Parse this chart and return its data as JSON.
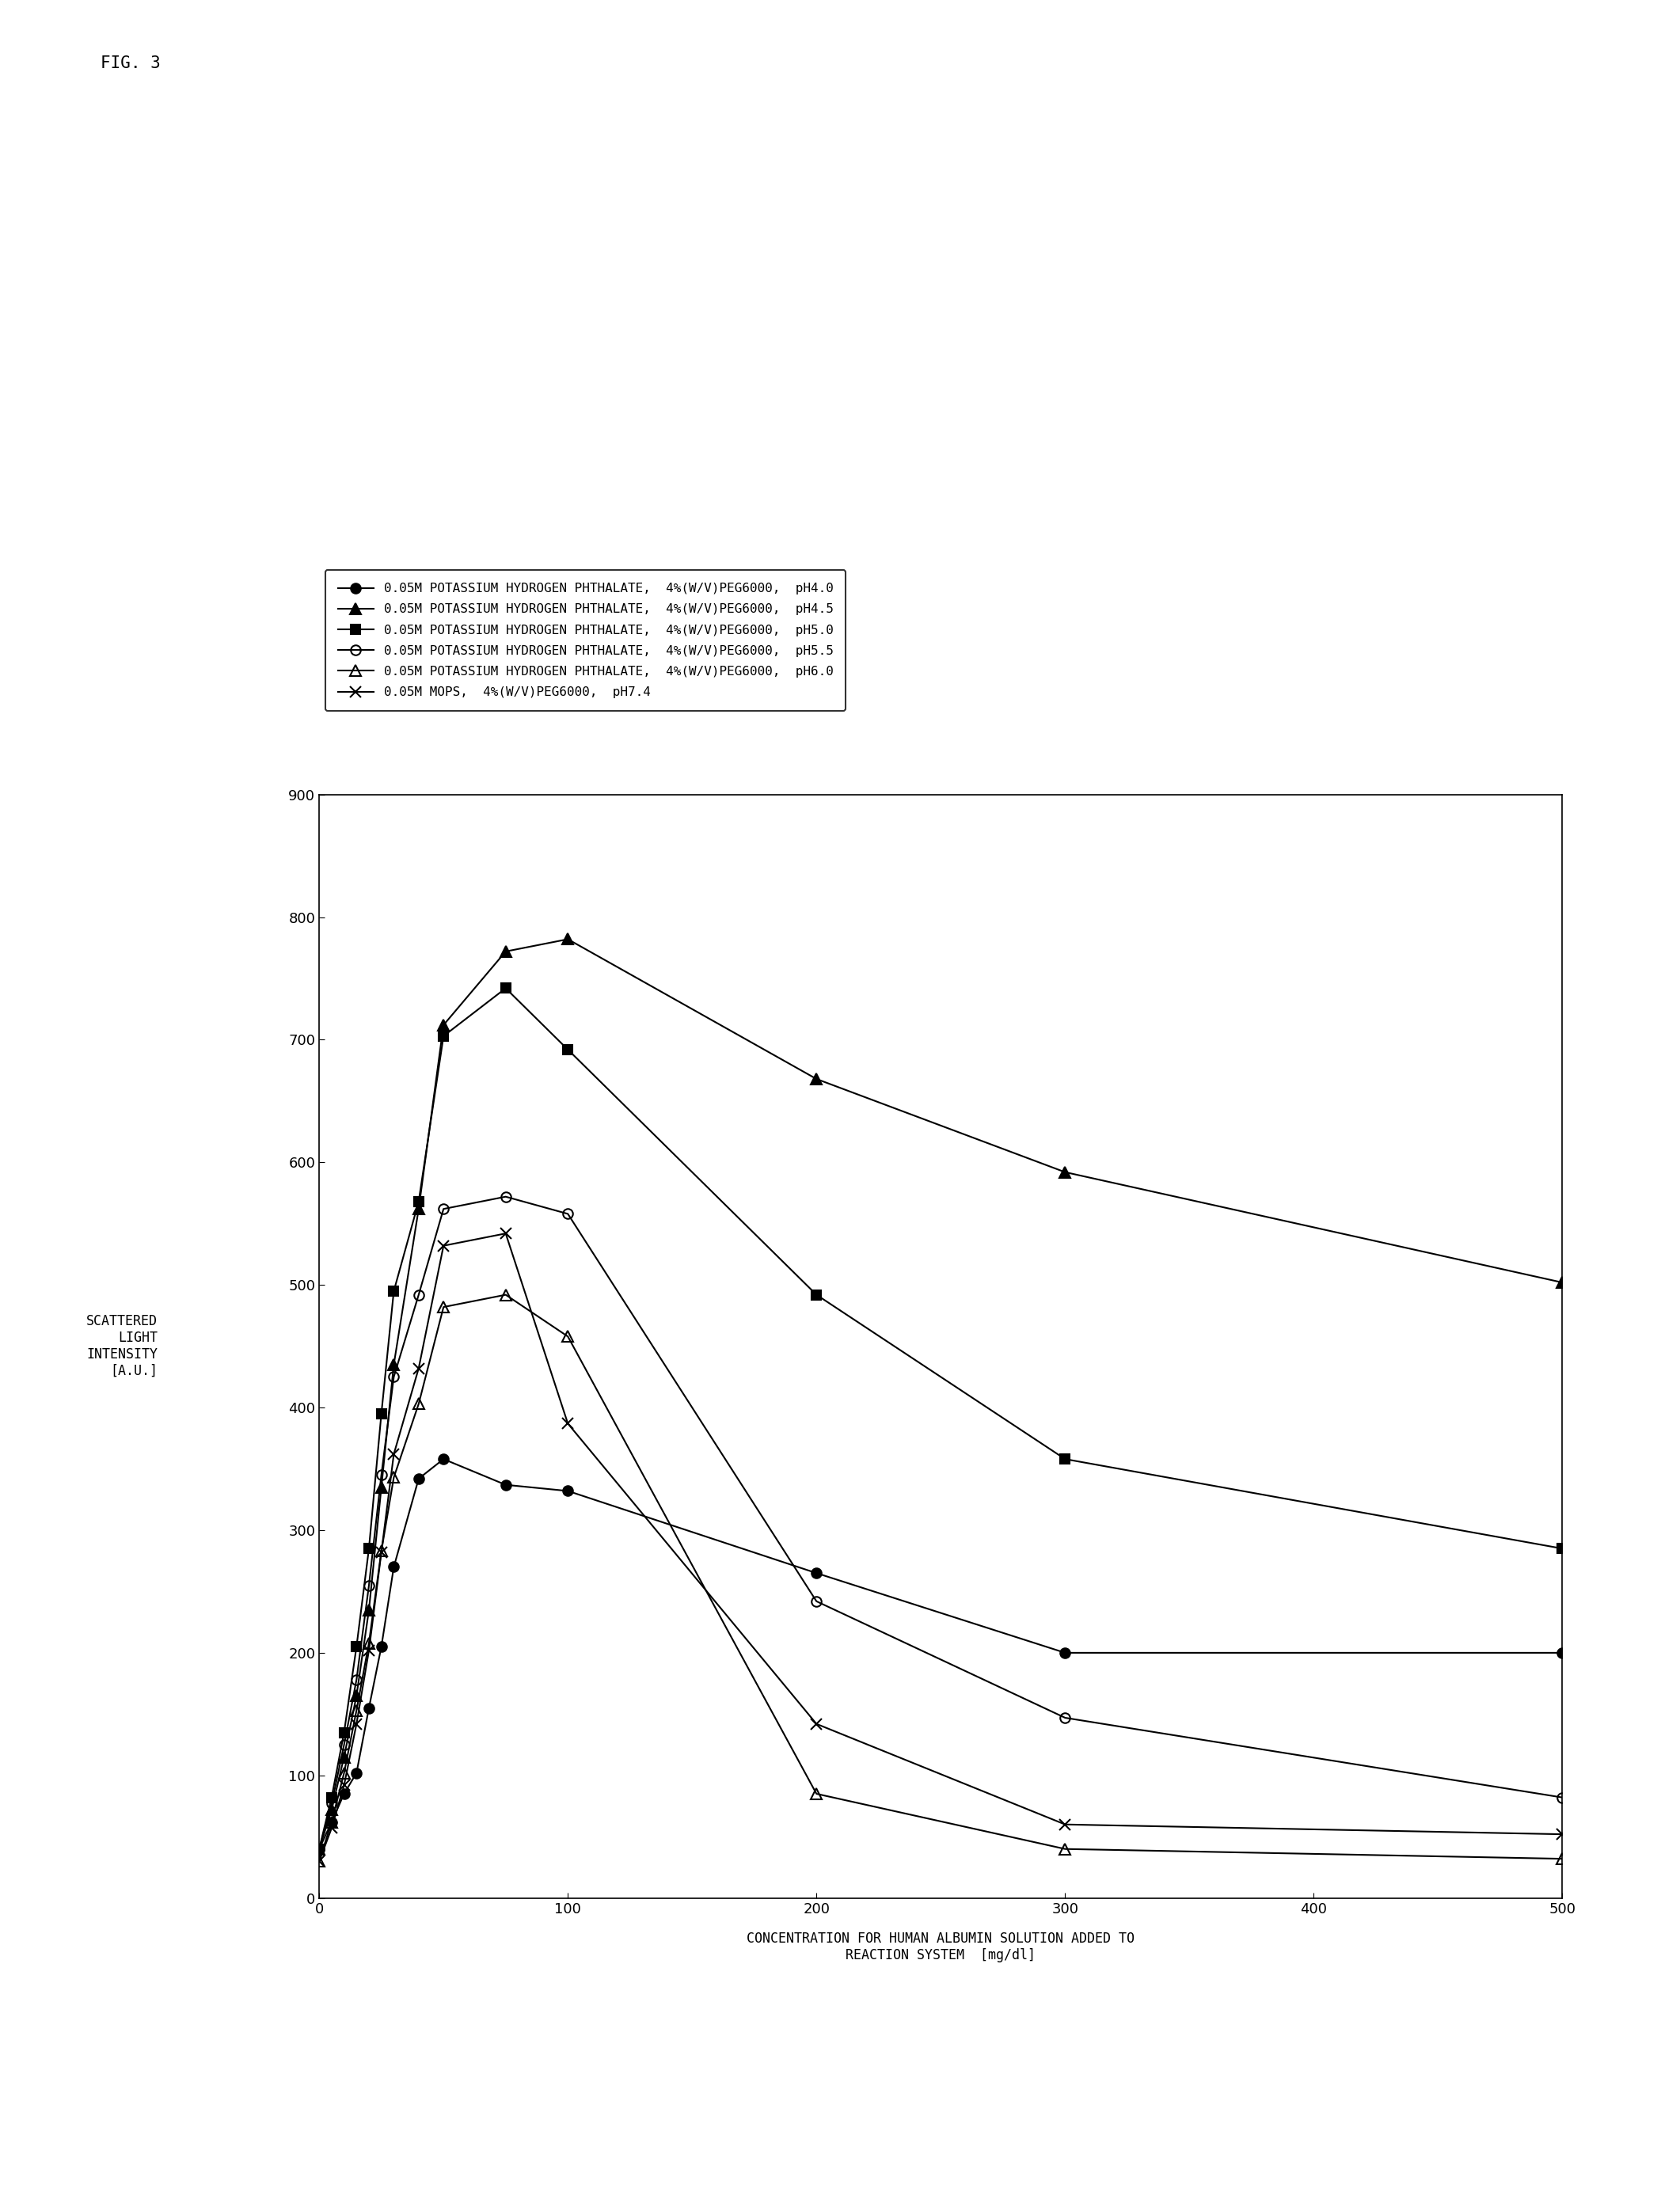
{
  "title": "FIG. 3",
  "xlabel_line1": "CONCENTRATION FOR HUMAN ALBUMIN SOLUTION ADDED TO",
  "xlabel_line2": "REACTION SYSTEM  [mg/dl]",
  "ylabel_line1": "SCATTERED\nLIGHT\nINTENSITY\n[A.U.]",
  "xlim": [
    0,
    500
  ],
  "ylim": [
    0,
    900
  ],
  "xticks": [
    0,
    100,
    200,
    300,
    400,
    500
  ],
  "yticks": [
    0,
    100,
    200,
    300,
    400,
    500,
    600,
    700,
    800,
    900
  ],
  "series": [
    {
      "label": "0.05M POTASSIUM HYDROGEN PHTHALATE,  4%(W/V)PEG6000,  pH4.0",
      "x": [
        0,
        5,
        10,
        15,
        20,
        25,
        30,
        40,
        50,
        75,
        100,
        200,
        300,
        500
      ],
      "y": [
        40,
        62,
        85,
        102,
        155,
        205,
        270,
        342,
        358,
        337,
        332,
        265,
        200,
        200
      ],
      "marker": "o",
      "markersize": 9,
      "fillstyle": "full",
      "color": "#000000"
    },
    {
      "label": "0.05M POTASSIUM HYDROGEN PHTHALATE,  4%(W/V)PEG6000,  pH4.5",
      "x": [
        0,
        5,
        10,
        15,
        20,
        25,
        30,
        40,
        50,
        75,
        100,
        200,
        300,
        500
      ],
      "y": [
        40,
        72,
        115,
        165,
        235,
        335,
        435,
        562,
        712,
        772,
        782,
        668,
        592,
        502
      ],
      "marker": "^",
      "markersize": 10,
      "fillstyle": "full",
      "color": "#000000"
    },
    {
      "label": "0.05M POTASSIUM HYDROGEN PHTHALATE,  4%(W/V)PEG6000,  pH5.0",
      "x": [
        0,
        5,
        10,
        15,
        20,
        25,
        30,
        40,
        50,
        75,
        100,
        200,
        300,
        500
      ],
      "y": [
        40,
        82,
        135,
        205,
        285,
        395,
        495,
        568,
        703,
        742,
        692,
        492,
        358,
        285
      ],
      "marker": "s",
      "markersize": 9,
      "fillstyle": "full",
      "color": "#000000"
    },
    {
      "label": "0.05M POTASSIUM HYDROGEN PHTHALATE,  4%(W/V)PEG6000,  pH5.5",
      "x": [
        0,
        5,
        10,
        15,
        20,
        25,
        30,
        40,
        50,
        75,
        100,
        200,
        300,
        500
      ],
      "y": [
        40,
        77,
        125,
        178,
        255,
        345,
        425,
        492,
        562,
        572,
        558,
        242,
        147,
        82
      ],
      "marker": "o",
      "markersize": 9,
      "fillstyle": "none",
      "color": "#000000"
    },
    {
      "label": "0.05M POTASSIUM HYDROGEN PHTHALATE,  4%(W/V)PEG6000,  pH6.0",
      "x": [
        0,
        5,
        10,
        15,
        20,
        25,
        30,
        40,
        50,
        75,
        100,
        200,
        300,
        500
      ],
      "y": [
        30,
        62,
        102,
        153,
        208,
        283,
        343,
        403,
        482,
        492,
        458,
        85,
        40,
        32
      ],
      "marker": "^",
      "markersize": 10,
      "fillstyle": "none",
      "color": "#000000"
    },
    {
      "label": "0.05M MOPS,  4%(W/V)PEG6000,  pH7.4",
      "x": [
        0,
        5,
        10,
        15,
        20,
        25,
        30,
        40,
        50,
        75,
        100,
        200,
        300,
        500
      ],
      "y": [
        30,
        57,
        92,
        142,
        202,
        282,
        362,
        432,
        532,
        542,
        387,
        142,
        60,
        52
      ],
      "marker": "x",
      "markersize": 10,
      "fillstyle": "full",
      "color": "#000000"
    }
  ],
  "background_color": "#ffffff",
  "legend_fontsize": 11.5,
  "axis_label_fontsize": 12,
  "tick_fontsize": 13,
  "title_fontsize": 15
}
